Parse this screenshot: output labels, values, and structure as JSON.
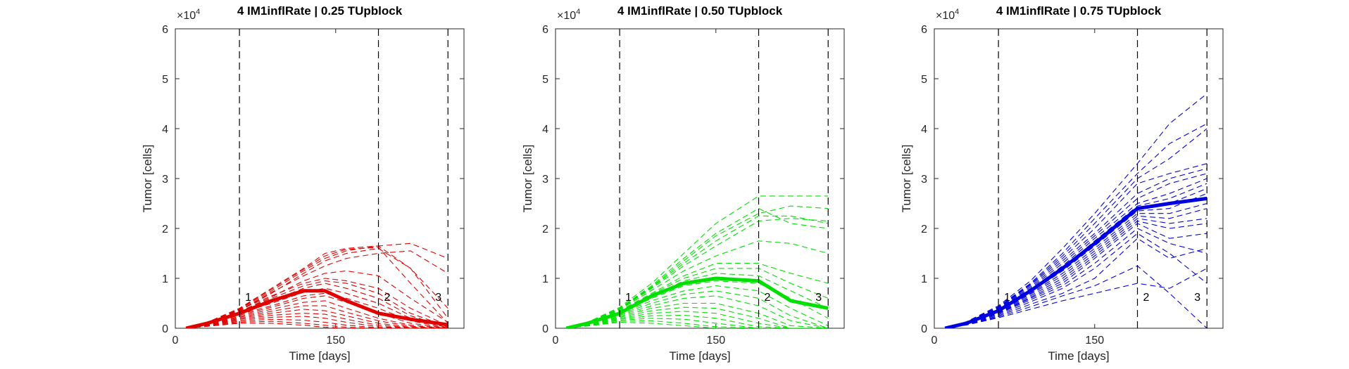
{
  "chart_data": [
    {
      "type": "line",
      "title": "4 IM1inflRate | 0.25 TUpblock",
      "xlabel": "Time [days]",
      "ylabel": "Tumor [cells]",
      "y_exponent_label": "×10",
      "y_exponent": "4",
      "xlim": [
        0,
        270
      ],
      "ylim": [
        0,
        60000
      ],
      "xticks": [
        0,
        150
      ],
      "yticks": [
        0,
        10000,
        20000,
        30000,
        40000,
        50000,
        60000
      ],
      "ytick_labels": [
        "0",
        "1",
        "2",
        "3",
        "4",
        "5",
        "6"
      ],
      "xtick_labels": [
        "0",
        "150"
      ],
      "vlines": [
        {
          "x": 60,
          "label": "1"
        },
        {
          "x": 190,
          "label": "2"
        },
        {
          "x": 255,
          "label": "3"
        }
      ],
      "color": "#e00000",
      "x": [
        10,
        30,
        60,
        90,
        120,
        140,
        160,
        190,
        220,
        255
      ],
      "mean": [
        0,
        1000,
        3000,
        5500,
        7500,
        7500,
        5500,
        3000,
        1800,
        700
      ],
      "simulations": [
        [
          0,
          1200,
          4000,
          8000,
          12000,
          15000,
          16000,
          16500,
          12000,
          4000
        ],
        [
          0,
          1100,
          3800,
          7500,
          11500,
          14000,
          15500,
          16500,
          17000,
          14000
        ],
        [
          0,
          1000,
          3500,
          7000,
          11000,
          13500,
          15000,
          16000,
          12000,
          2000
        ],
        [
          0,
          1000,
          3600,
          7200,
          10500,
          12500,
          14000,
          15000,
          15500,
          11000
        ],
        [
          0,
          1100,
          3700,
          6500,
          9000,
          10000,
          9500,
          8000,
          4000,
          500
        ],
        [
          0,
          1000,
          3400,
          6000,
          8500,
          9500,
          9000,
          7000,
          3000,
          300
        ],
        [
          0,
          900,
          3200,
          5500,
          8000,
          9000,
          8000,
          6000,
          2500,
          200
        ],
        [
          0,
          900,
          3000,
          5000,
          7200,
          8000,
          7000,
          5000,
          2000,
          100
        ],
        [
          0,
          800,
          2800,
          4500,
          6500,
          7000,
          6000,
          4000,
          1500,
          50
        ],
        [
          0,
          800,
          2600,
          4200,
          6000,
          6500,
          5200,
          3000,
          1000,
          0
        ],
        [
          0,
          700,
          2400,
          3800,
          5200,
          5500,
          4000,
          2000,
          600,
          0
        ],
        [
          0,
          700,
          2200,
          3400,
          4500,
          4500,
          3200,
          1500,
          400,
          0
        ],
        [
          0,
          600,
          2000,
          3000,
          3800,
          3500,
          2500,
          1000,
          200,
          0
        ],
        [
          0,
          600,
          1800,
          2600,
          3000,
          2800,
          1800,
          600,
          100,
          0
        ],
        [
          0,
          500,
          1600,
          2200,
          2400,
          2000,
          1200,
          300,
          50,
          0
        ],
        [
          0,
          500,
          1400,
          1800,
          1600,
          1200,
          600,
          100,
          0,
          0
        ],
        [
          0,
          400,
          1200,
          1400,
          1000,
          600,
          200,
          0,
          0,
          0
        ],
        [
          0,
          400,
          1000,
          1000,
          600,
          200,
          0,
          0,
          0,
          0
        ],
        [
          0,
          1050,
          3900,
          7800,
          11800,
          14500,
          15800,
          16200,
          9000,
          1000
        ],
        [
          0,
          950,
          3300,
          6300,
          9500,
          11000,
          11500,
          10500,
          6000,
          1200
        ]
      ]
    },
    {
      "type": "line",
      "title": "4 IM1inflRate | 0.50 TUpblock",
      "xlabel": "Time [days]",
      "ylabel": "Tumor [cells]",
      "y_exponent_label": "×10",
      "y_exponent": "4",
      "xlim": [
        0,
        270
      ],
      "ylim": [
        0,
        60000
      ],
      "xticks": [
        0,
        150
      ],
      "yticks": [
        0,
        10000,
        20000,
        30000,
        40000,
        50000,
        60000
      ],
      "ytick_labels": [
        "0",
        "1",
        "2",
        "3",
        "4",
        "5",
        "6"
      ],
      "xtick_labels": [
        "0",
        "150"
      ],
      "vlines": [
        {
          "x": 60,
          "label": "1"
        },
        {
          "x": 190,
          "label": "2"
        },
        {
          "x": 255,
          "label": "3"
        }
      ],
      "color": "#00e000",
      "x": [
        10,
        30,
        60,
        90,
        120,
        150,
        190,
        220,
        255
      ],
      "mean": [
        0,
        1000,
        3000,
        6500,
        9000,
        10000,
        9500,
        5500,
        4000
      ],
      "simulations": [
        [
          0,
          1200,
          4200,
          9000,
          15000,
          21000,
          26500,
          26500,
          26500
        ],
        [
          0,
          1150,
          4000,
          8500,
          14000,
          19000,
          24000,
          21000,
          20000
        ],
        [
          0,
          1100,
          3900,
          8200,
          13000,
          17500,
          22500,
          22500,
          21000
        ],
        [
          0,
          1100,
          3800,
          8000,
          12500,
          16500,
          21500,
          22000,
          21500
        ],
        [
          0,
          1050,
          3700,
          7600,
          11500,
          14500,
          17500,
          17000,
          15000
        ],
        [
          0,
          1000,
          3500,
          7000,
          10500,
          13000,
          13000,
          11000,
          9000
        ],
        [
          0,
          1000,
          3400,
          6800,
          10000,
          12000,
          12000,
          9000,
          6000
        ],
        [
          0,
          950,
          3300,
          6500,
          9500,
          11000,
          10500,
          7500,
          4000
        ],
        [
          0,
          900,
          3100,
          6000,
          8500,
          9500,
          9000,
          6000,
          2000
        ],
        [
          0,
          900,
          3000,
          5500,
          7500,
          8500,
          7500,
          4000,
          500
        ],
        [
          0,
          850,
          2800,
          5000,
          6800,
          7500,
          6000,
          2500,
          0
        ],
        [
          0,
          800,
          2600,
          4500,
          6000,
          6500,
          4500,
          1500,
          0
        ],
        [
          0,
          750,
          2400,
          4000,
          5000,
          5000,
          3000,
          500,
          0
        ],
        [
          0,
          700,
          2200,
          3500,
          4200,
          4000,
          2000,
          0,
          0
        ],
        [
          0,
          650,
          2000,
          3000,
          3400,
          3000,
          1000,
          0,
          0
        ],
        [
          0,
          600,
          1800,
          2500,
          2600,
          2000,
          300,
          0,
          0
        ],
        [
          0,
          550,
          1600,
          2000,
          1800,
          1000,
          0,
          0,
          0
        ],
        [
          0,
          500,
          1400,
          1500,
          1000,
          300,
          0,
          0,
          0
        ],
        [
          0,
          450,
          1200,
          1000,
          500,
          0,
          0,
          0,
          0
        ],
        [
          0,
          1120,
          3950,
          8300,
          13500,
          18500,
          23000,
          24500,
          24000
        ]
      ]
    },
    {
      "type": "line",
      "title": "4 IM1inflRate | 0.75 TUpblock",
      "xlabel": "Time [days]",
      "ylabel": "Tumor [cells]",
      "y_exponent_label": "×10",
      "y_exponent": "4",
      "xlim": [
        0,
        270
      ],
      "ylim": [
        0,
        60000
      ],
      "xticks": [
        0,
        150
      ],
      "yticks": [
        0,
        10000,
        20000,
        30000,
        40000,
        50000,
        60000
      ],
      "ytick_labels": [
        "0",
        "1",
        "2",
        "3",
        "4",
        "5",
        "6"
      ],
      "xtick_labels": [
        "0",
        "150"
      ],
      "vlines": [
        {
          "x": 60,
          "label": "1"
        },
        {
          "x": 190,
          "label": "2"
        },
        {
          "x": 255,
          "label": "3"
        }
      ],
      "color": "#0000e0",
      "x": [
        10,
        30,
        60,
        90,
        120,
        150,
        190,
        220,
        255
      ],
      "mean": [
        0,
        1000,
        3500,
        7500,
        12000,
        17000,
        24000,
        25000,
        26000
      ],
      "simulations": [
        [
          0,
          1300,
          4500,
          9500,
          16000,
          23000,
          33000,
          41000,
          47000
        ],
        [
          0,
          1250,
          4300,
          9000,
          15000,
          22000,
          31000,
          37000,
          41000
        ],
        [
          0,
          1200,
          4200,
          8800,
          14500,
          21000,
          30000,
          34000,
          40000
        ],
        [
          0,
          1200,
          4100,
          8600,
          14000,
          20000,
          29000,
          31000,
          33000
        ],
        [
          0,
          1150,
          4000,
          8300,
          13500,
          19000,
          27000,
          30000,
          32000
        ],
        [
          0,
          1100,
          3900,
          8000,
          13000,
          18500,
          26000,
          29000,
          31000
        ],
        [
          0,
          1100,
          3800,
          7800,
          12500,
          18000,
          25000,
          27000,
          30000
        ],
        [
          0,
          1050,
          3700,
          7600,
          12000,
          17500,
          24500,
          26000,
          29000
        ],
        [
          0,
          1050,
          3600,
          7400,
          11800,
          17000,
          24000,
          25000,
          28000
        ],
        [
          0,
          1000,
          3500,
          7200,
          11500,
          16500,
          23500,
          24000,
          27000
        ],
        [
          0,
          1000,
          3400,
          7000,
          11000,
          16000,
          23000,
          23000,
          25000
        ],
        [
          0,
          950,
          3300,
          6800,
          10500,
          15500,
          22500,
          22000,
          24000
        ],
        [
          0,
          950,
          3200,
          6500,
          10000,
          15000,
          22000,
          21000,
          22000
        ],
        [
          0,
          900,
          3100,
          6200,
          9500,
          14500,
          21500,
          20000,
          21000
        ],
        [
          0,
          900,
          3000,
          6000,
          9000,
          14000,
          21000,
          18000,
          19000
        ],
        [
          0,
          850,
          2900,
          5700,
          8500,
          13000,
          20000,
          17000,
          15000
        ],
        [
          0,
          800,
          2700,
          5300,
          8000,
          12000,
          19000,
          15000,
          9000
        ],
        [
          0,
          750,
          2500,
          4800,
          7000,
          10000,
          18000,
          14000,
          16000
        ],
        [
          0,
          700,
          2300,
          4300,
          6500,
          8500,
          12500,
          7000,
          0
        ],
        [
          0,
          650,
          2100,
          3800,
          5500,
          7000,
          9000,
          8000,
          12000
        ]
      ]
    }
  ]
}
